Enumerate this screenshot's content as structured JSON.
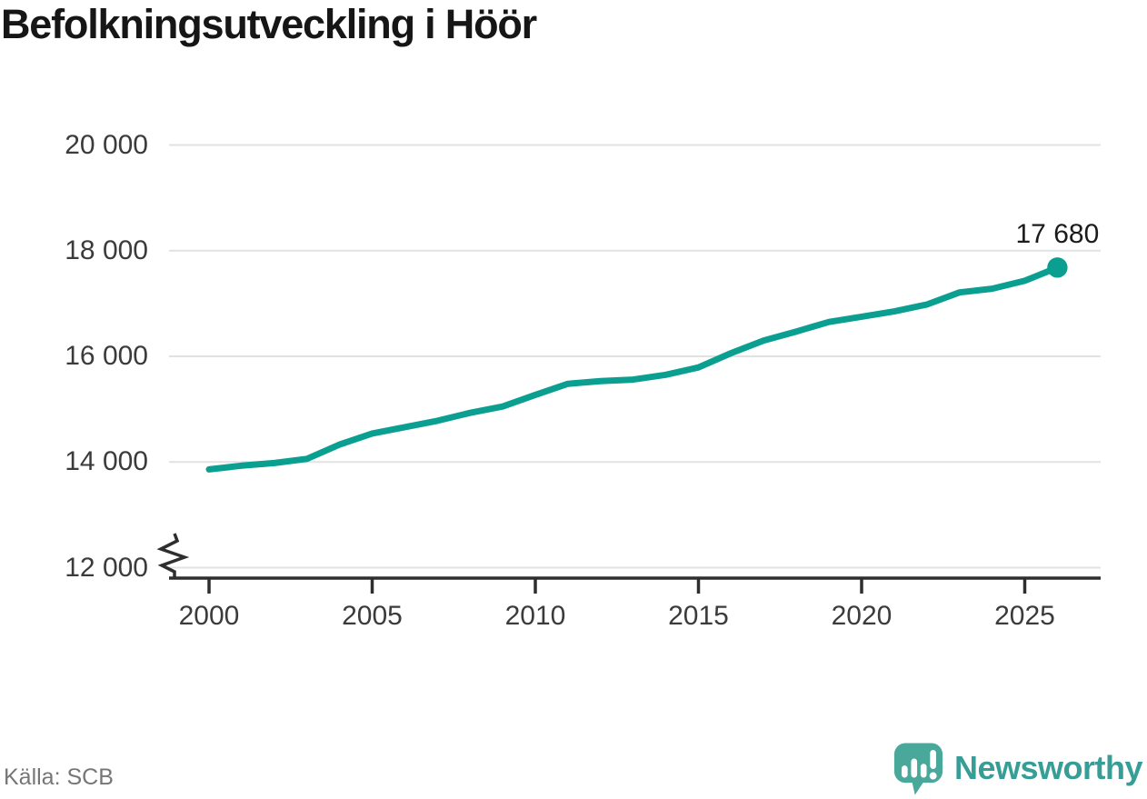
{
  "title": "Befolkningsutveckling i Höör",
  "source": "Källa: SCB",
  "brand": {
    "name": "Newsworthy",
    "icon": "newsworthy-bubble-chart-icon",
    "text_color": "#379e97",
    "icon_color": "#4aa89b"
  },
  "chart_data": {
    "type": "line",
    "title": "Befolkningsutveckling i Höör",
    "x": [
      2000,
      2001,
      2002,
      2003,
      2004,
      2005,
      2006,
      2007,
      2008,
      2009,
      2010,
      2011,
      2012,
      2013,
      2014,
      2015,
      2016,
      2017,
      2018,
      2019,
      2020,
      2021,
      2022,
      2023,
      2024,
      2025,
      2026
    ],
    "y": [
      13860,
      13930,
      13980,
      14060,
      14330,
      14540,
      14660,
      14780,
      14930,
      15050,
      15270,
      15480,
      15530,
      15560,
      15650,
      15790,
      16060,
      16300,
      16470,
      16650,
      16750,
      16850,
      16980,
      17210,
      17280,
      17430,
      17680
    ],
    "end_label": "17 680",
    "latest_value": 17680,
    "x_ticks": {
      "values": [
        2000,
        2005,
        2010,
        2015,
        2020,
        2025
      ],
      "labels": [
        "2000",
        "2005",
        "2010",
        "2015",
        "2020",
        "2025"
      ]
    },
    "y_ticks": {
      "values": [
        12000,
        14000,
        16000,
        18000,
        20000
      ],
      "labels": [
        "12 000",
        "14 000",
        "16 000",
        "18 000",
        "20 000"
      ]
    },
    "ylim": [
      12000,
      20000
    ],
    "xlim": [
      2000,
      2026
    ],
    "grid": true,
    "axis_break_bottom": true,
    "legend": "none",
    "line_color": "#0a9f90",
    "label_color": "#1b1b1b"
  }
}
